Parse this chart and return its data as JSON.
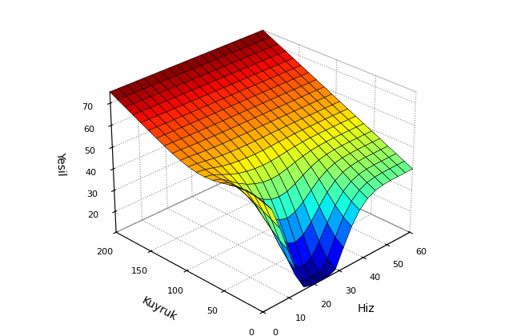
{
  "xlabel": "Hiz",
  "ylabel": "Kuyruk",
  "zlabel": "Yesil",
  "hiz_range": [
    0,
    60
  ],
  "kuyruk_range": [
    0,
    200
  ],
  "zlim": [
    10,
    75
  ],
  "hiz_ticks": [
    0,
    10,
    20,
    30,
    40,
    50,
    60
  ],
  "kuyruk_ticks": [
    0,
    50,
    100,
    150,
    200
  ],
  "yesil_ticks": [
    20,
    30,
    40,
    50,
    60,
    70
  ],
  "elev": 28,
  "azim": -135,
  "background_color": "#ffffff",
  "figsize": [
    6.46,
    4.2
  ],
  "dpi": 100,
  "n_hiz": 20,
  "n_kuyruk": 20
}
